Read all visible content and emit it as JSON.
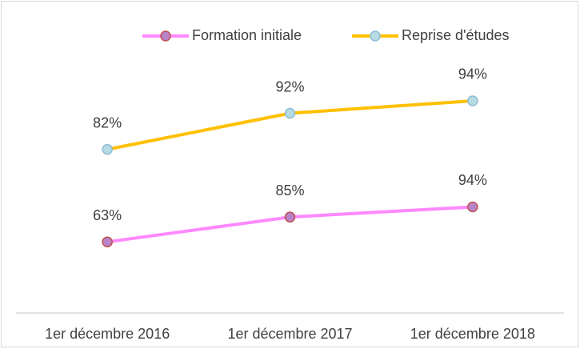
{
  "chart_data": {
    "type": "line",
    "stacked": true,
    "categories": [
      "1er décembre 2016",
      "1er décembre 2017",
      "1er décembre 2018"
    ],
    "series": [
      {
        "name": "Formation initiale",
        "color": "#ff88ff",
        "marker_fill": "#b983c9",
        "marker_stroke": "#c0504d",
        "values": [
          63,
          85,
          94
        ],
        "value_labels": [
          "63%",
          "85%",
          "94%"
        ]
      },
      {
        "name": "Reprise d'études",
        "color": "#ffc000",
        "marker_fill": "#b7dbe3",
        "marker_stroke": "#8fbcd2",
        "values": [
          82,
          92,
          94
        ],
        "value_labels": [
          "82%",
          "92%",
          "94%"
        ]
      }
    ],
    "ylim": [
      0,
      250
    ],
    "legend": "top"
  }
}
